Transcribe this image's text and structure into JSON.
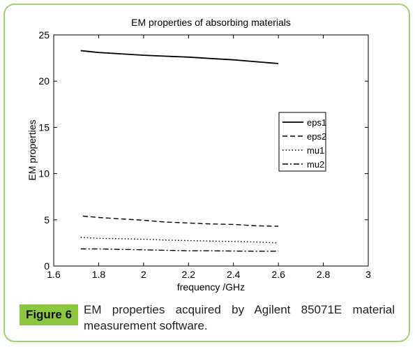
{
  "chart_data": {
    "type": "line",
    "title": "EM properties of absorbing materials",
    "xlabel": "frequency /GHz",
    "ylabel": "EM properties",
    "xlim": [
      1.6,
      3
    ],
    "ylim": [
      0,
      25
    ],
    "xticks": [
      1.6,
      1.8,
      2,
      2.2,
      2.4,
      2.6,
      2.8,
      3
    ],
    "xtick_labels": [
      "1.6",
      "1.8",
      "2",
      "2.2",
      "2.4",
      "2.6",
      "2.8",
      "3"
    ],
    "yticks": [
      0,
      5,
      10,
      15,
      20,
      25
    ],
    "ytick_labels": [
      "0",
      "5",
      "10",
      "15",
      "20",
      "25"
    ],
    "grid": false,
    "legend_position": "right, middle",
    "series": [
      {
        "name": "eps1",
        "style": "solid",
        "x": [
          1.72,
          1.8,
          1.9,
          2.0,
          2.1,
          2.2,
          2.3,
          2.4,
          2.5,
          2.6
        ],
        "y": [
          23.3,
          23.1,
          22.95,
          22.8,
          22.7,
          22.6,
          22.45,
          22.3,
          22.1,
          21.9
        ]
      },
      {
        "name": "eps2",
        "style": "dashed",
        "x": [
          1.73,
          1.8,
          1.9,
          2.0,
          2.1,
          2.2,
          2.3,
          2.4,
          2.5,
          2.6
        ],
        "y": [
          5.4,
          5.25,
          5.1,
          4.95,
          4.75,
          4.65,
          4.55,
          4.5,
          4.35,
          4.3
        ]
      },
      {
        "name": "mu1",
        "style": "dotted",
        "x": [
          1.72,
          1.8,
          1.9,
          2.0,
          2.1,
          2.2,
          2.3,
          2.4,
          2.5,
          2.6
        ],
        "y": [
          3.1,
          3.0,
          2.95,
          2.9,
          2.8,
          2.75,
          2.7,
          2.65,
          2.6,
          2.5
        ]
      },
      {
        "name": "mu2",
        "style": "dashdot",
        "x": [
          1.72,
          1.8,
          1.9,
          2.0,
          2.1,
          2.2,
          2.3,
          2.4,
          2.5,
          2.6
        ],
        "y": [
          1.85,
          1.85,
          1.8,
          1.75,
          1.7,
          1.65,
          1.65,
          1.62,
          1.6,
          1.6
        ]
      }
    ]
  },
  "caption": {
    "label": "Figure 6",
    "text": "EM properties acquired by Agilent 85071E material measurement software."
  },
  "colors": {
    "frame_border": "#a6cf6f",
    "figure_label_bg": "#8dc63f",
    "series_color": "#000000"
  }
}
